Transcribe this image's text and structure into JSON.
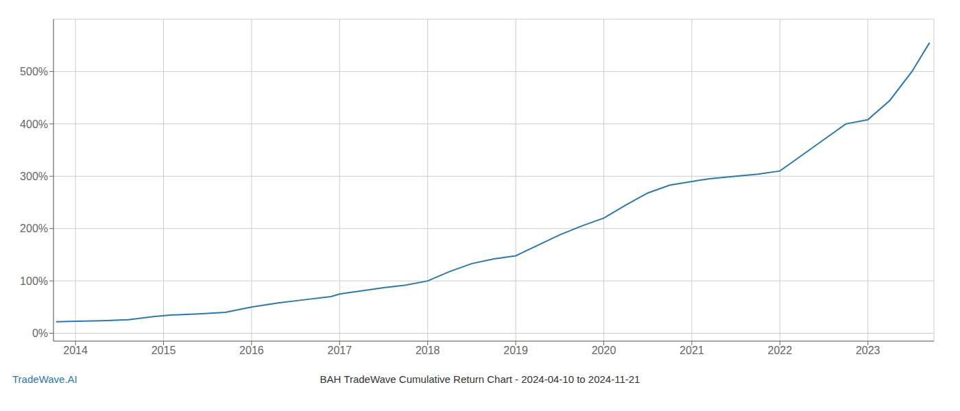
{
  "chart_data": {
    "type": "line",
    "title": "BAH TradeWave Cumulative Return Chart - 2024-04-10 to 2024-11-21",
    "annotations": [
      "TradeWave.AI"
    ],
    "color": "#2878b5",
    "grid": true,
    "xlim": [
      2013.75,
      2023.75
    ],
    "xticks": [
      2014,
      2015,
      2016,
      2017,
      2018,
      2019,
      2020,
      2021,
      2022,
      2023
    ],
    "ylim": [
      -15,
      600
    ],
    "yticks": [
      {
        "value": 0,
        "label": "0%"
      },
      {
        "value": 100,
        "label": "100%"
      },
      {
        "value": 200,
        "label": "200%"
      },
      {
        "value": 300,
        "label": "300%"
      },
      {
        "value": 400,
        "label": "400%"
      },
      {
        "value": 500,
        "label": "500%"
      }
    ],
    "x": [
      2013.78,
      2014.0,
      2014.3,
      2014.6,
      2014.9,
      2015.1,
      2015.4,
      2015.7,
      2016.0,
      2016.3,
      2016.6,
      2016.9,
      2017.0,
      2017.2,
      2017.5,
      2017.75,
      2018.0,
      2018.25,
      2018.5,
      2018.75,
      2019.0,
      2019.25,
      2019.5,
      2019.75,
      2020.0,
      2020.25,
      2020.5,
      2020.75,
      2021.0,
      2021.2,
      2021.5,
      2021.75,
      2022.0,
      2022.25,
      2022.5,
      2022.75,
      2023.0,
      2023.25,
      2023.5,
      2023.7
    ],
    "values": [
      22,
      23,
      24,
      26,
      32,
      35,
      37,
      40,
      50,
      58,
      64,
      70,
      75,
      80,
      87,
      92,
      100,
      118,
      133,
      142,
      148,
      168,
      188,
      205,
      220,
      245,
      268,
      283,
      290,
      295,
      300,
      304,
      310,
      340,
      370,
      400,
      408,
      445,
      500,
      555
    ]
  }
}
